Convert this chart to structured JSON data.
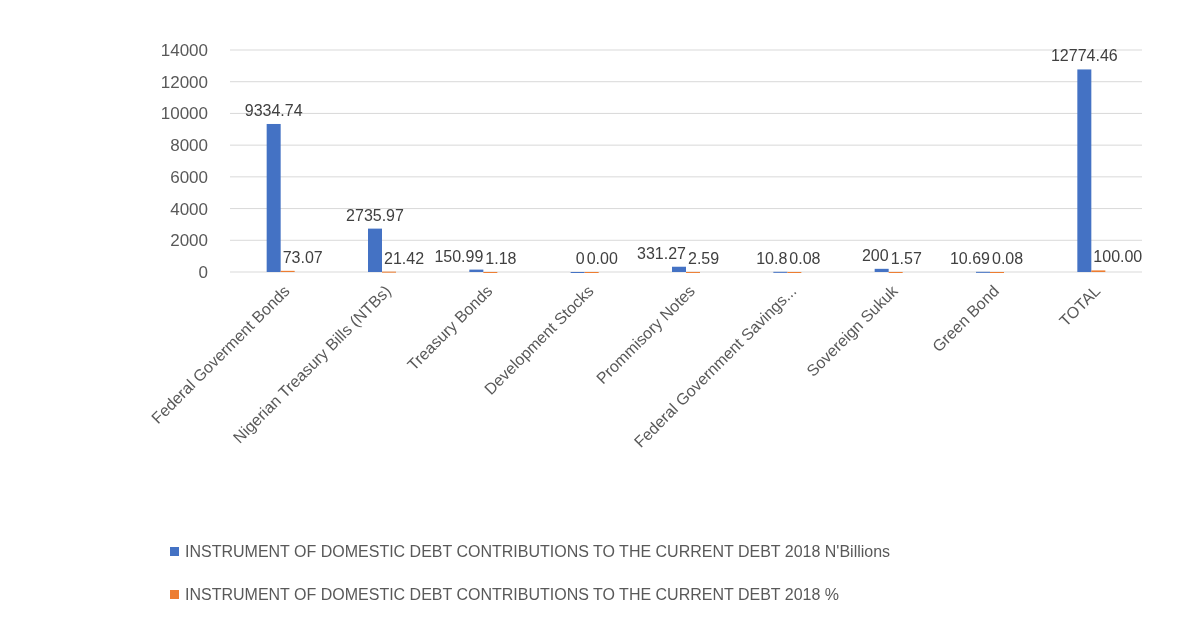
{
  "chart_data": {
    "type": "bar",
    "categories": [
      "Federal Goverment Bonds",
      "Nigerian Treasury Bills (NTBs)",
      "Treasury Bonds",
      "Development Stocks",
      "Prommisory Notes",
      "Federal Government Savings...",
      "Sovereign Sukuk",
      "Green Bond",
      "TOTAL"
    ],
    "series": [
      {
        "name": "INSTRUMENT OF DOMESTIC DEBT CONTRIBUTIONS TO THE CURRENT DEBT 2018 N'Billions",
        "color": "#4472c4",
        "values": [
          9334.74,
          2735.97,
          150.99,
          0,
          331.27,
          10.8,
          200,
          10.69,
          12774.46
        ],
        "value_labels": [
          "9334.74",
          "2735.97",
          "150.99",
          "0",
          "331.27",
          "10.8",
          "200",
          "10.69",
          "12774.46"
        ]
      },
      {
        "name": "INSTRUMENT OF DOMESTIC DEBT CONTRIBUTIONS TO THE CURRENT DEBT 2018 %",
        "color": "#ed7d31",
        "values": [
          73.07,
          21.42,
          1.18,
          0,
          2.59,
          0.08,
          1.57,
          0.08,
          100
        ],
        "value_labels": [
          "73.07",
          "21.42",
          "1.18",
          "0.00",
          "2.59",
          "0.08",
          "1.57",
          "0.08",
          "100.00"
        ]
      }
    ],
    "ylim": [
      0,
      14000
    ],
    "yticks": [
      0,
      2000,
      4000,
      6000,
      8000,
      10000,
      12000,
      14000
    ],
    "grid": "y",
    "legend": "bottom"
  }
}
